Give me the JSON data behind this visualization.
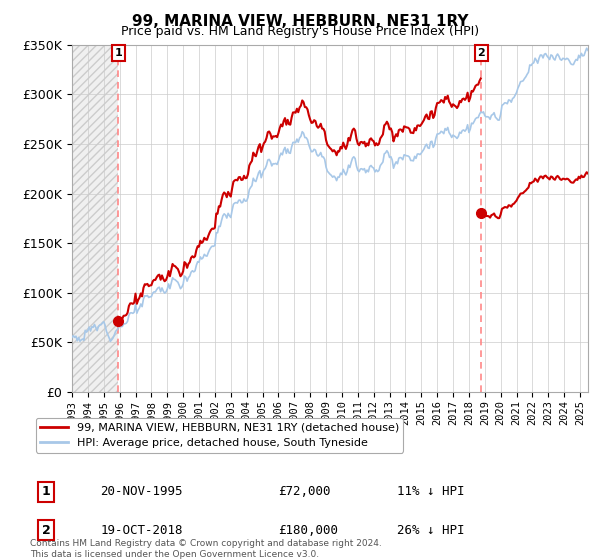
{
  "title": "99, MARINA VIEW, HEBBURN, NE31 1RY",
  "subtitle": "Price paid vs. HM Land Registry's House Price Index (HPI)",
  "sale1_price": 72000,
  "sale1_label": "20-NOV-1995",
  "sale1_pct": "11% ↓ HPI",
  "sale2_price": 180000,
  "sale2_label": "19-OCT-2018",
  "sale2_pct": "26% ↓ HPI",
  "sale1_x": 1995.917,
  "sale2_x": 2018.792,
  "ylim": [
    0,
    350000
  ],
  "yticks": [
    0,
    50000,
    100000,
    150000,
    200000,
    250000,
    300000,
    350000
  ],
  "hpi_color": "#a8c8e8",
  "price_color": "#cc0000",
  "vline_color": "#ff8888",
  "marker_color": "#cc0000",
  "legend_label1": "99, MARINA VIEW, HEBBURN, NE31 1RY (detached house)",
  "legend_label2": "HPI: Average price, detached house, South Tyneside",
  "footnote": "Contains HM Land Registry data © Crown copyright and database right 2024.\nThis data is licensed under the Open Government Licence v3.0.",
  "xstart": 1993.0,
  "xend": 2025.5
}
